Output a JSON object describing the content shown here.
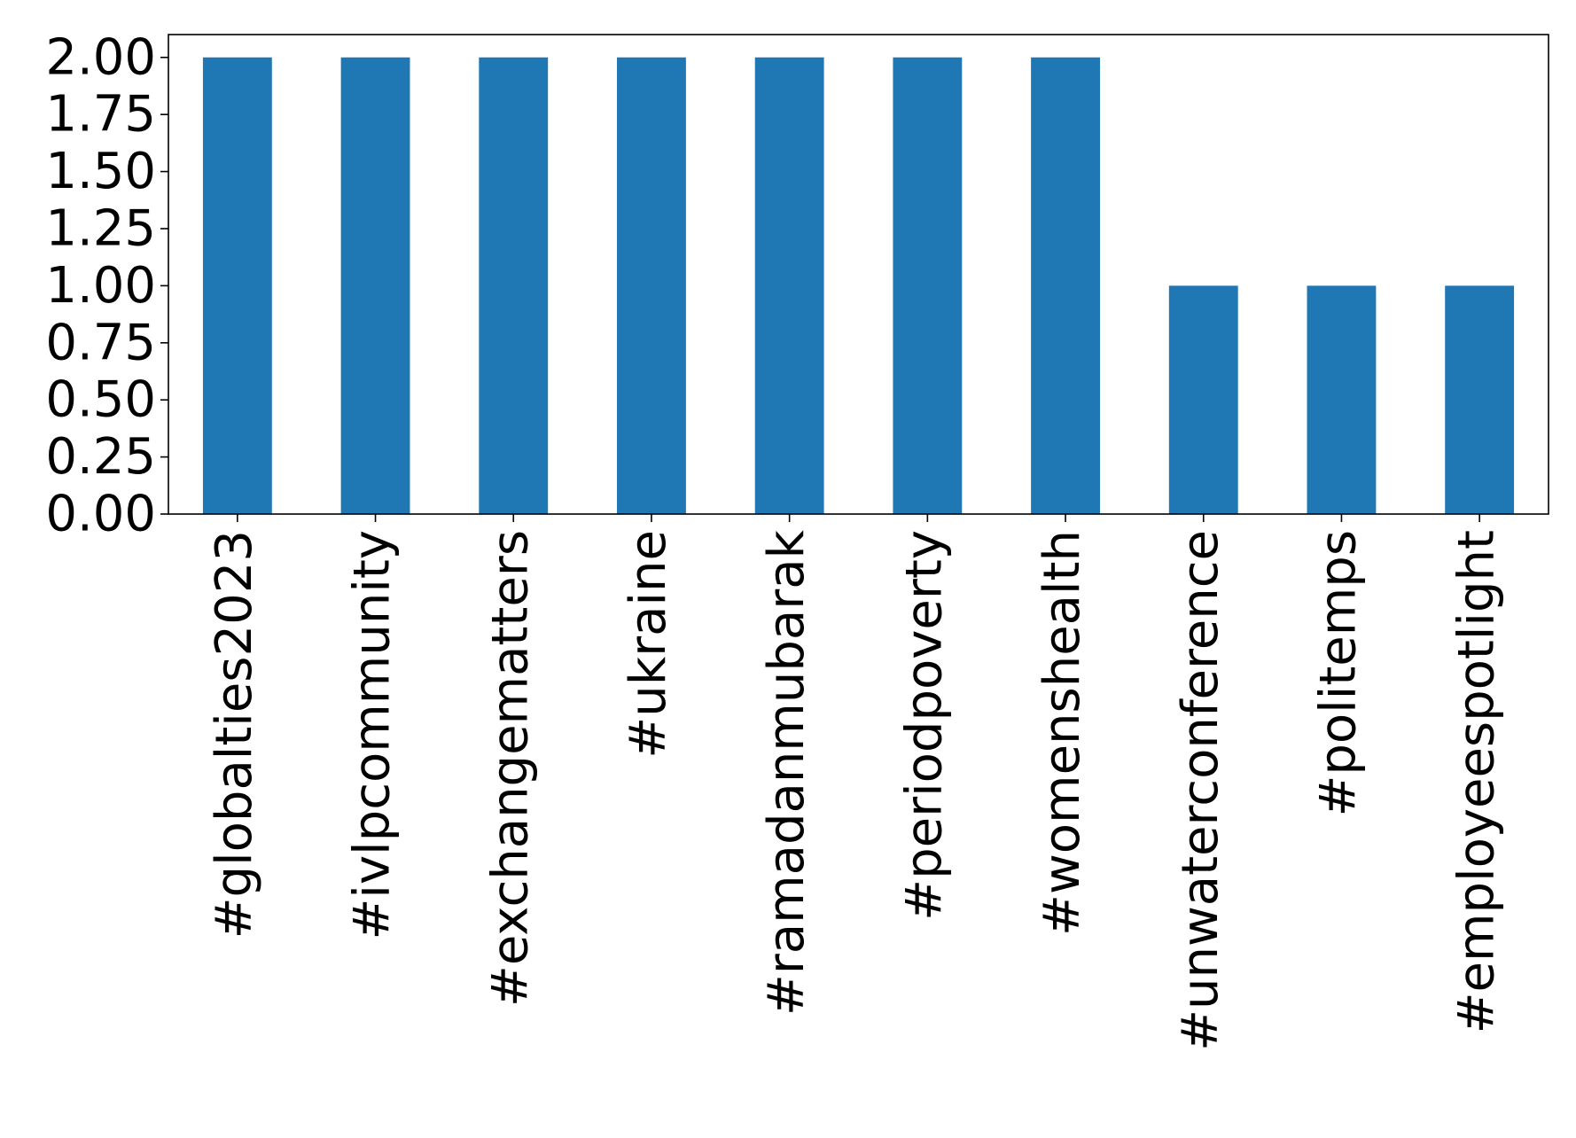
{
  "chart_data": {
    "type": "bar",
    "categories": [
      "#globalties2023",
      "#ivlpcommunity",
      "#exchangematters",
      "#ukraine",
      "#ramadanmubarak",
      "#periodpoverty",
      "#womenshealth",
      "#unwaterconference",
      "#politemps",
      "#employeespotlight"
    ],
    "values": [
      2,
      2,
      2,
      2,
      2,
      2,
      2,
      1,
      1,
      1
    ],
    "title": "",
    "xlabel": "",
    "ylabel": "",
    "ylim": [
      0,
      2.1
    ],
    "yticks": [
      0.0,
      0.25,
      0.5,
      0.75,
      1.0,
      1.25,
      1.5,
      1.75,
      2.0
    ],
    "ytick_labels": [
      "0.00",
      "0.25",
      "0.50",
      "0.75",
      "1.00",
      "1.25",
      "1.50",
      "1.75",
      "2.00"
    ],
    "bar_color": "#1f77b4",
    "grid": false,
    "legend": "none"
  }
}
